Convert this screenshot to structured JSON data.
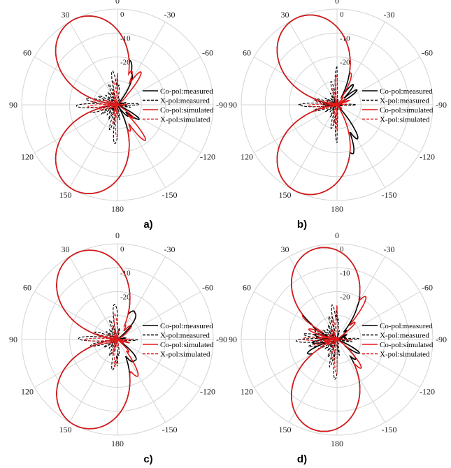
{
  "figure": {
    "panels": [
      {
        "id": "a",
        "caption": "a)"
      },
      {
        "id": "b",
        "caption": "b)"
      },
      {
        "id": "c",
        "caption": "c)"
      },
      {
        "id": "d",
        "caption": "d)"
      }
    ]
  },
  "chart_data": [
    {
      "type": "polar-line",
      "panel": "a)",
      "angular_ticks": [
        "0",
        "-30",
        "-60",
        "-90",
        "-120",
        "-150",
        "180",
        "150",
        "120",
        "90",
        "60",
        "30"
      ],
      "radial_ticks": [
        "0",
        "-10",
        "-20"
      ],
      "r_range_db": [
        -40,
        0
      ],
      "legend_position": "right",
      "series": [
        {
          "name": "Co-pol:measured",
          "color": "#000000",
          "dash": "solid",
          "main_lobe_angles_deg": [
            27,
            153
          ],
          "peak_db": 0,
          "sidelobe_db": -16,
          "variant": 1
        },
        {
          "name": "X-pol:measured",
          "color": "#000000",
          "dash": "dashed",
          "peak_db": -22,
          "variant": 2
        },
        {
          "name": "Co-pol:simulated",
          "color": "#e0191a",
          "dash": "solid",
          "main_lobe_angles_deg": [
            27,
            153
          ],
          "peak_db": 0,
          "sidelobe_db": -17,
          "variant": 3
        },
        {
          "name": "X-pol:simulated",
          "color": "#e0191a",
          "dash": "dashed",
          "peak_db": -26,
          "variant": 4
        }
      ]
    },
    {
      "type": "polar-line",
      "panel": "b)",
      "angular_ticks": [
        "0",
        "-30",
        "-60",
        "-90",
        "-120",
        "-150",
        "180",
        "150",
        "120",
        "90",
        "60",
        "30"
      ],
      "radial_ticks": [
        "0",
        "-10",
        "-20"
      ],
      "r_range_db": [
        -40,
        0
      ],
      "legend_position": "right",
      "series": [
        {
          "name": "Co-pol:measured",
          "color": "#000000",
          "dash": "solid",
          "main_lobe_angles_deg": [
            25,
            155
          ],
          "peak_db": 0,
          "sidelobe_db": -18,
          "variant": 5
        },
        {
          "name": "X-pol:measured",
          "color": "#000000",
          "dash": "dashed",
          "peak_db": -24,
          "variant": 6
        },
        {
          "name": "Co-pol:simulated",
          "color": "#e0191a",
          "dash": "solid",
          "main_lobe_angles_deg": [
            25,
            155
          ],
          "peak_db": 0,
          "sidelobe_db": -18,
          "variant": 7
        },
        {
          "name": "X-pol:simulated",
          "color": "#e0191a",
          "dash": "dashed",
          "peak_db": -27,
          "variant": 8
        }
      ]
    },
    {
      "type": "polar-line",
      "panel": "c)",
      "angular_ticks": [
        "0",
        "-30",
        "-60",
        "-90",
        "-120",
        "-150",
        "180",
        "150",
        "120",
        "90",
        "60",
        "30"
      ],
      "radial_ticks": [
        "0",
        "-10",
        "-20"
      ],
      "r_range_db": [
        -40,
        0
      ],
      "legend_position": "right",
      "series": [
        {
          "name": "Co-pol:measured",
          "color": "#000000",
          "dash": "solid",
          "main_lobe_angles_deg": [
            26,
            154
          ],
          "peak_db": 0,
          "sidelobe_db": -15,
          "variant": 9
        },
        {
          "name": "X-pol:measured",
          "color": "#000000",
          "dash": "dashed",
          "peak_db": -23,
          "variant": 10
        },
        {
          "name": "Co-pol:simulated",
          "color": "#e0191a",
          "dash": "solid",
          "main_lobe_angles_deg": [
            26,
            154
          ],
          "peak_db": 0,
          "sidelobe_db": -16,
          "variant": 11
        },
        {
          "name": "X-pol:simulated",
          "color": "#e0191a",
          "dash": "dashed",
          "peak_db": -26,
          "variant": 12
        }
      ]
    },
    {
      "type": "polar-line",
      "panel": "d)",
      "angular_ticks": [
        "0",
        "-30",
        "-60",
        "-90",
        "-120",
        "-150",
        "180",
        "150",
        "120",
        "90",
        "60",
        "30"
      ],
      "radial_ticks": [
        "0",
        "-10",
        "-20"
      ],
      "r_range_db": [
        -40,
        0
      ],
      "legend_position": "right",
      "series": [
        {
          "name": "Co-pol:measured",
          "color": "#000000",
          "dash": "solid",
          "main_lobe_angles_deg": [
            12,
            168
          ],
          "peak_db": -1,
          "sidelobe_db": -14,
          "variant": 13
        },
        {
          "name": "X-pol:measured",
          "color": "#000000",
          "dash": "dashed",
          "peak_db": -22,
          "variant": 14
        },
        {
          "name": "Co-pol:simulated",
          "color": "#e0191a",
          "dash": "solid",
          "main_lobe_angles_deg": [
            12,
            168
          ],
          "peak_db": -1,
          "sidelobe_db": -15,
          "variant": 15
        },
        {
          "name": "X-pol:simulated",
          "color": "#e0191a",
          "dash": "dashed",
          "peak_db": -25,
          "variant": 16
        }
      ]
    }
  ]
}
